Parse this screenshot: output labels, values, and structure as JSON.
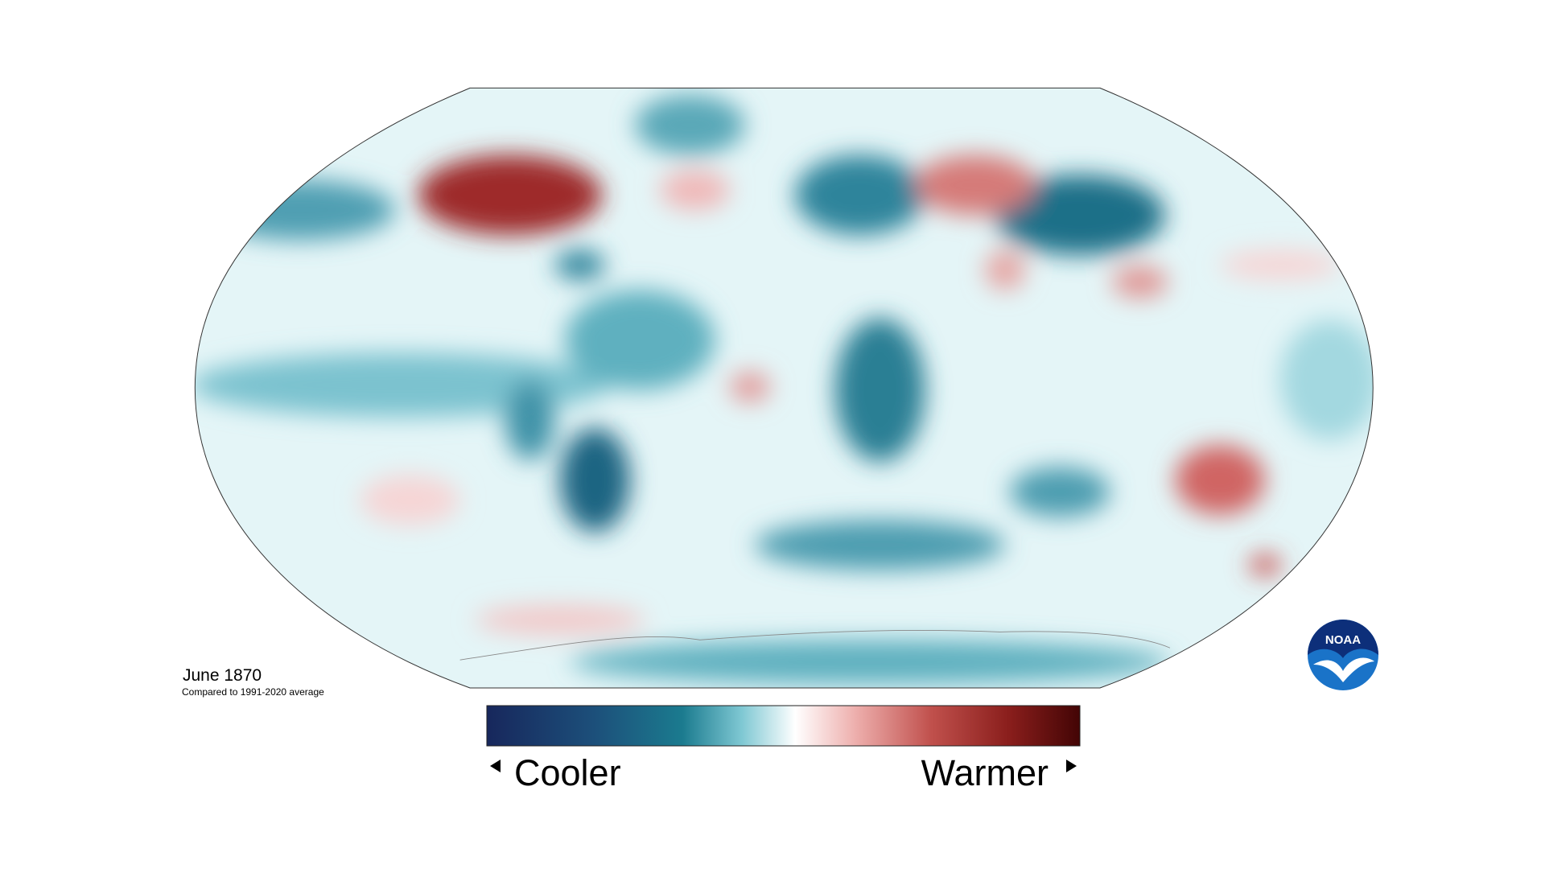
{
  "map": {
    "title": "June 1870",
    "subtitle": "Compared to 1991-2020 average"
  },
  "legend": {
    "low_label": "Cooler",
    "high_label": "Warmer"
  },
  "logo": {
    "text": "NOAA"
  }
}
